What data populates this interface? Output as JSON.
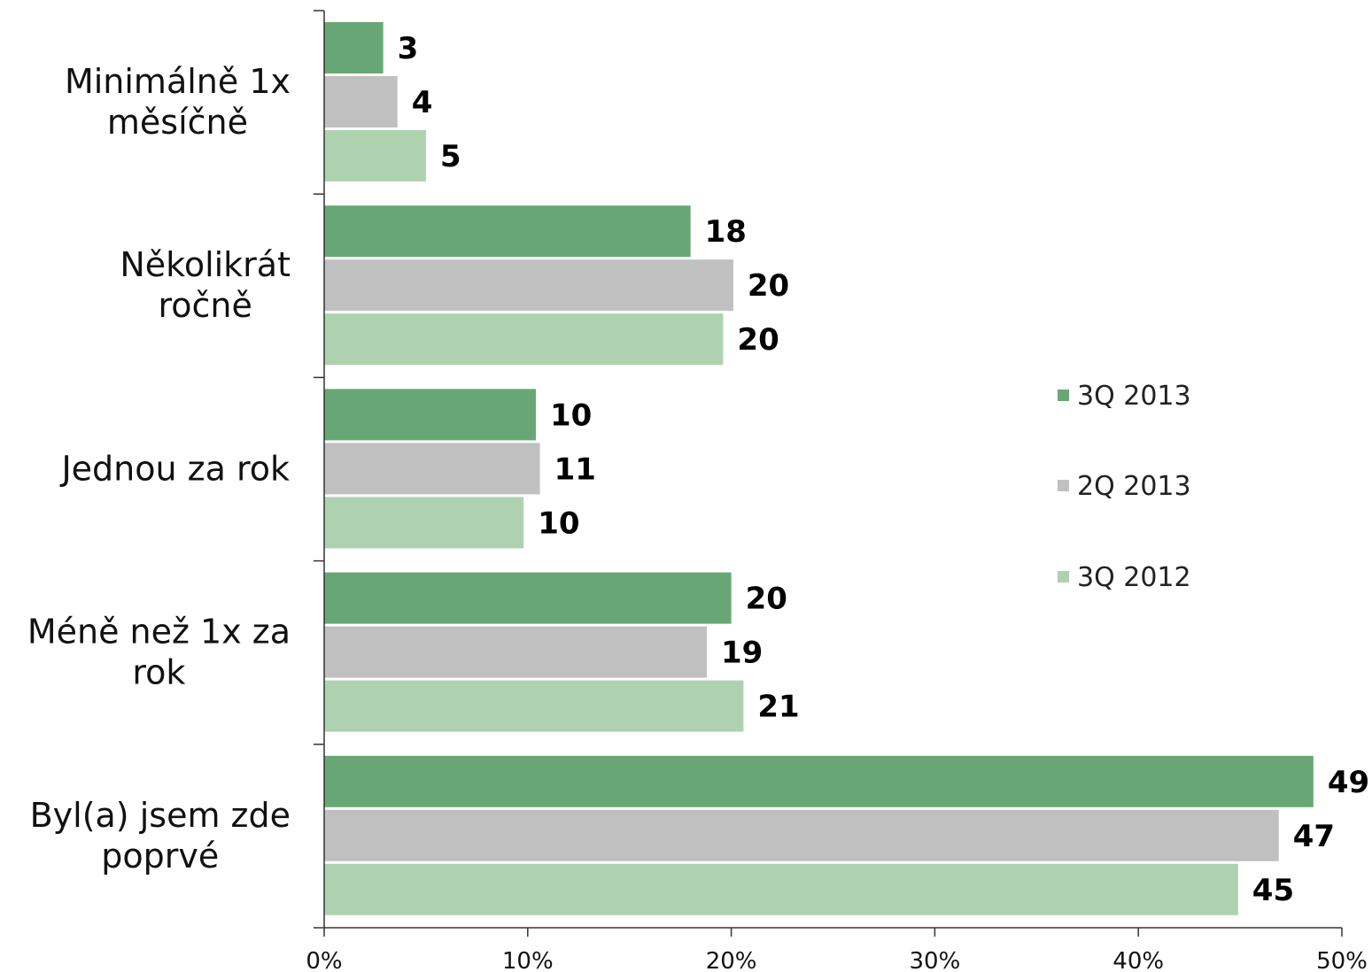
{
  "chart_data": {
    "type": "bar",
    "orientation": "horizontal",
    "categories": [
      [
        "Minimálně 1x",
        "měsíčně"
      ],
      [
        "Několikrát",
        "ročně"
      ],
      [
        "Jednou za rok"
      ],
      [
        "Méně než 1x za",
        "rok"
      ],
      [
        "Byl(a) jsem zde",
        "poprvé"
      ]
    ],
    "series": [
      {
        "name": "3Q 2013",
        "color": "#68a775",
        "values": [
          2.9,
          18.0,
          10.4,
          20.0,
          48.6
        ],
        "labels": [
          "3",
          "18",
          "10",
          "20",
          "49"
        ]
      },
      {
        "name": "2Q 2013",
        "color": "#c0c0c0",
        "values": [
          3.6,
          20.1,
          10.6,
          18.8,
          46.9
        ],
        "labels": [
          "4",
          "20",
          "11",
          "19",
          "47"
        ]
      },
      {
        "name": "3Q 2012",
        "color": "#aed2b0",
        "values": [
          5.0,
          19.6,
          9.8,
          20.6,
          44.9
        ],
        "labels": [
          "5",
          "20",
          "10",
          "21",
          "45"
        ]
      }
    ],
    "xlim": [
      0,
      50
    ],
    "xticks": [
      "0%",
      "10%",
      "20%",
      "30%",
      "40%",
      "50%"
    ],
    "title": "",
    "xlabel": "",
    "ylabel": "",
    "legend_position": "right",
    "grid": false
  }
}
